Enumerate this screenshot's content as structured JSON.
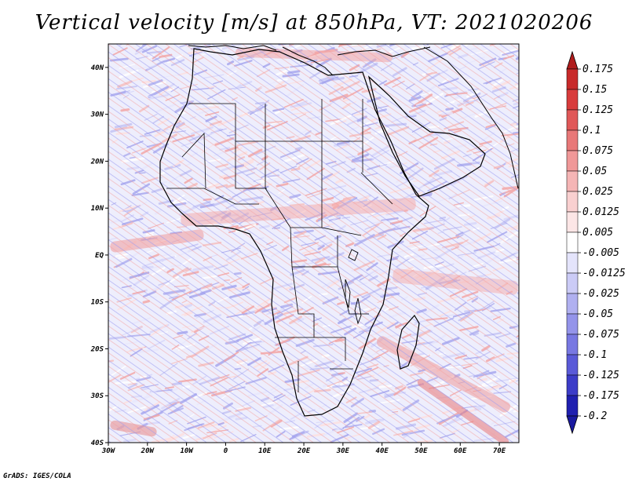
{
  "title": "Vertical velocity [m/s] at 850hPa, VT: 2021020206",
  "footer": "GrADS: IGES/COLA",
  "map": {
    "lat_range": [
      -40,
      45
    ],
    "lon_range": [
      -30,
      75
    ],
    "lat_ticks": [
      {
        "value": 40,
        "label": "40N"
      },
      {
        "value": 30,
        "label": "30N"
      },
      {
        "value": 20,
        "label": "20N"
      },
      {
        "value": 10,
        "label": "10N"
      },
      {
        "value": 0,
        "label": "EQ"
      },
      {
        "value": -10,
        "label": "10S"
      },
      {
        "value": -20,
        "label": "20S"
      },
      {
        "value": -30,
        "label": "30S"
      },
      {
        "value": -40,
        "label": "40S"
      }
    ],
    "lon_ticks": [
      {
        "value": -30,
        "label": "30W"
      },
      {
        "value": -20,
        "label": "20W"
      },
      {
        "value": -10,
        "label": "10W"
      },
      {
        "value": 0,
        "label": "0"
      },
      {
        "value": 10,
        "label": "10E"
      },
      {
        "value": 20,
        "label": "20E"
      },
      {
        "value": 30,
        "label": "30E"
      },
      {
        "value": 40,
        "label": "40E"
      },
      {
        "value": 50,
        "label": "50E"
      },
      {
        "value": 60,
        "label": "60E"
      },
      {
        "value": 70,
        "label": "70E"
      }
    ]
  },
  "colorbar": {
    "levels": [
      "0.175",
      "0.15",
      "0.125",
      "0.1",
      "0.075",
      "0.05",
      "0.025",
      "0.0125",
      "0.005",
      "-0.005",
      "-0.0125",
      "-0.025",
      "-0.05",
      "-0.075",
      "-0.1",
      "-0.125",
      "-0.175",
      "-0.2"
    ],
    "colors": [
      "#b01c1c",
      "#c82a2a",
      "#d83c3c",
      "#e05858",
      "#e87878",
      "#f09898",
      "#f5b5b5",
      "#f9d0d0",
      "#fce6e6",
      "#ffffff",
      "#e4e4fb",
      "#cbcbf6",
      "#b0b0f0",
      "#9494ea",
      "#7878e2",
      "#5a5ad8",
      "#3c3cc8",
      "#2020b0",
      "#1a1aa0"
    ]
  }
}
